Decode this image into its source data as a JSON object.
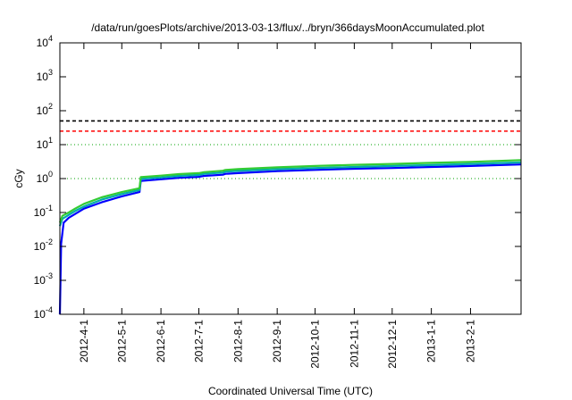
{
  "chart_data": {
    "type": "line",
    "title": "/data/run/goesPlots/archive/2013-03-13/flux/../bryn/366daysMoonAccumulated.plot",
    "xlabel": "Coordinated Universal Time (UTC)",
    "ylabel": "cGy",
    "y_scale": "log",
    "ylim": [
      0.0001,
      10000
    ],
    "y_ticks": [
      {
        "value": 0.0001,
        "base": "10",
        "exp": "-4"
      },
      {
        "value": 0.001,
        "base": "10",
        "exp": "-3"
      },
      {
        "value": 0.01,
        "base": "10",
        "exp": "-2"
      },
      {
        "value": 0.1,
        "base": "10",
        "exp": "-1"
      },
      {
        "value": 1,
        "base": "10",
        "exp": "0"
      },
      {
        "value": 10,
        "base": "10",
        "exp": "1"
      },
      {
        "value": 100,
        "base": "10",
        "exp": "2"
      },
      {
        "value": 1000,
        "base": "10",
        "exp": "3"
      },
      {
        "value": 10000,
        "base": "10",
        "exp": "4"
      }
    ],
    "xlim": [
      "2012-03-13",
      "2013-03-13"
    ],
    "x_ticks": [
      "2012-4-1",
      "2012-5-1",
      "2012-6-1",
      "2012-7-1",
      "2012-8-1",
      "2012-9-1",
      "2012-10-1",
      "2012-11-1",
      "2012-12-1",
      "2013-1-1",
      "2013-2-1"
    ],
    "grid": "dotted green horizontal lines at y = 1 and y = 10",
    "reference_lines": [
      {
        "value": 50,
        "color": "#000000",
        "style": "dashed"
      },
      {
        "value": 25,
        "color": "#ff0000",
        "style": "dashed"
      }
    ],
    "series": [
      {
        "color": "#0000ff",
        "x": [
          "2012-03-13",
          "2012-03-14",
          "2012-03-16",
          "2012-03-20",
          "2012-03-25",
          "2012-04-01",
          "2012-04-15",
          "2012-05-01",
          "2012-05-15",
          "2012-05-16",
          "2012-06-01",
          "2012-06-15",
          "2012-07-01",
          "2012-07-05",
          "2012-07-20",
          "2012-07-22",
          "2012-08-01",
          "2012-09-01",
          "2012-10-01",
          "2012-11-01",
          "2012-12-01",
          "2013-01-01",
          "2013-02-01",
          "2013-03-13"
        ],
        "y": [
          0.0001,
          0.012,
          0.05,
          0.07,
          0.09,
          0.13,
          0.2,
          0.3,
          0.4,
          0.85,
          0.95,
          1.05,
          1.12,
          1.2,
          1.3,
          1.38,
          1.45,
          1.65,
          1.8,
          1.95,
          2.05,
          2.2,
          2.35,
          2.6
        ]
      },
      {
        "color": "#00aaaa",
        "x": [
          "2012-03-13",
          "2012-03-15",
          "2012-03-20",
          "2012-03-25",
          "2012-04-01",
          "2012-04-15",
          "2012-05-01",
          "2012-05-15",
          "2012-05-16",
          "2012-06-01",
          "2012-06-15",
          "2012-07-01",
          "2012-07-05",
          "2012-07-20",
          "2012-07-22",
          "2012-08-01",
          "2012-09-01",
          "2012-10-01",
          "2012-11-01",
          "2012-12-01",
          "2013-01-01",
          "2013-02-01",
          "2013-03-13"
        ],
        "y": [
          0.04,
          0.065,
          0.085,
          0.11,
          0.15,
          0.24,
          0.35,
          0.46,
          0.98,
          1.08,
          1.2,
          1.28,
          1.38,
          1.5,
          1.6,
          1.68,
          1.9,
          2.05,
          2.2,
          2.35,
          2.5,
          2.7,
          3.0
        ]
      },
      {
        "color": "#33cc33",
        "x": [
          "2012-03-13",
          "2012-03-15",
          "2012-03-20",
          "2012-03-25",
          "2012-04-01",
          "2012-04-15",
          "2012-05-01",
          "2012-05-15",
          "2012-05-16",
          "2012-06-01",
          "2012-06-15",
          "2012-07-01",
          "2012-07-05",
          "2012-07-20",
          "2012-07-22",
          "2012-08-01",
          "2012-09-01",
          "2012-10-01",
          "2012-11-01",
          "2012-12-01",
          "2013-01-01",
          "2013-02-01",
          "2013-03-13"
        ],
        "y": [
          0.05,
          0.08,
          0.1,
          0.13,
          0.18,
          0.28,
          0.4,
          0.52,
          1.1,
          1.22,
          1.35,
          1.45,
          1.55,
          1.7,
          1.8,
          1.9,
          2.15,
          2.35,
          2.55,
          2.7,
          2.9,
          3.1,
          3.5
        ]
      }
    ]
  }
}
